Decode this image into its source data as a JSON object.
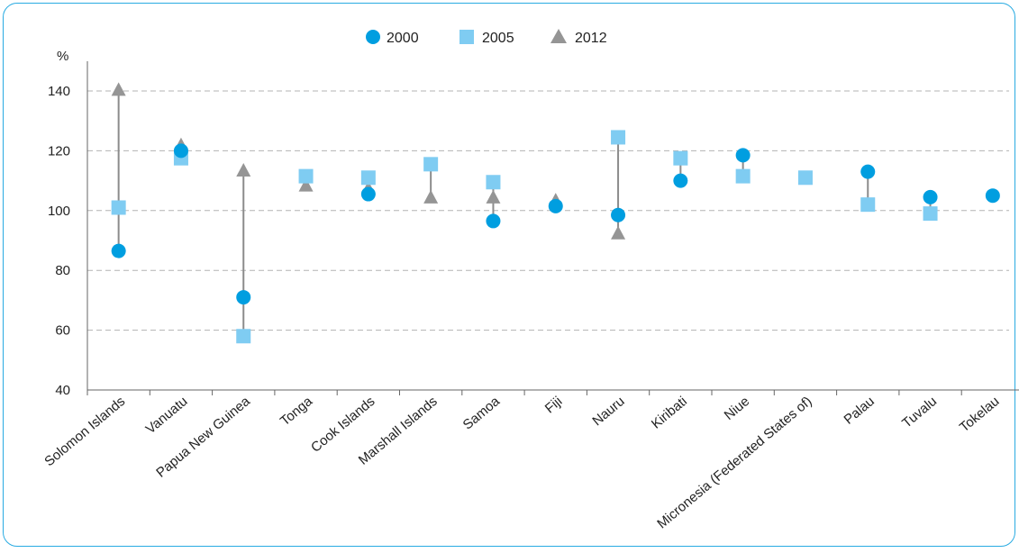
{
  "chart_data": {
    "type": "scatter",
    "ylabel": "%",
    "ylim": [
      40,
      140
    ],
    "yticks": [
      "40",
      "60",
      "80",
      "100",
      "120",
      "140"
    ],
    "grid": true,
    "legend_position": "top-center",
    "categories": [
      "Solomon Islands",
      "Vanuatu",
      "Papua New Guinea",
      "Tonga",
      "Cook Islands",
      "Marshall Islands",
      "Samoa",
      "Fiji",
      "Nauru",
      "Kiribati",
      "Niue",
      "Micronesia (Federated States of)",
      "Palau",
      "Tuvalu",
      "Tokelau"
    ],
    "series": [
      {
        "name": "2000",
        "marker": "circle",
        "color": "#009ee0",
        "values": [
          86.5,
          120,
          71,
          null,
          105.5,
          null,
          96.5,
          101.5,
          98.5,
          110,
          118.5,
          null,
          113,
          104.5,
          105
        ]
      },
      {
        "name": "2005",
        "marker": "square",
        "color": "#7fccf2",
        "values": [
          101,
          117.5,
          58,
          111.5,
          111,
          115.5,
          109.5,
          null,
          124.5,
          117.5,
          111.5,
          111,
          102,
          99,
          null
        ]
      },
      {
        "name": "2012",
        "marker": "triangle",
        "color": "#959595",
        "values": [
          140.5,
          122,
          113.5,
          108.5,
          107.5,
          104.5,
          104.5,
          103.5,
          92.5,
          null,
          null,
          null,
          null,
          null,
          null
        ]
      }
    ]
  }
}
